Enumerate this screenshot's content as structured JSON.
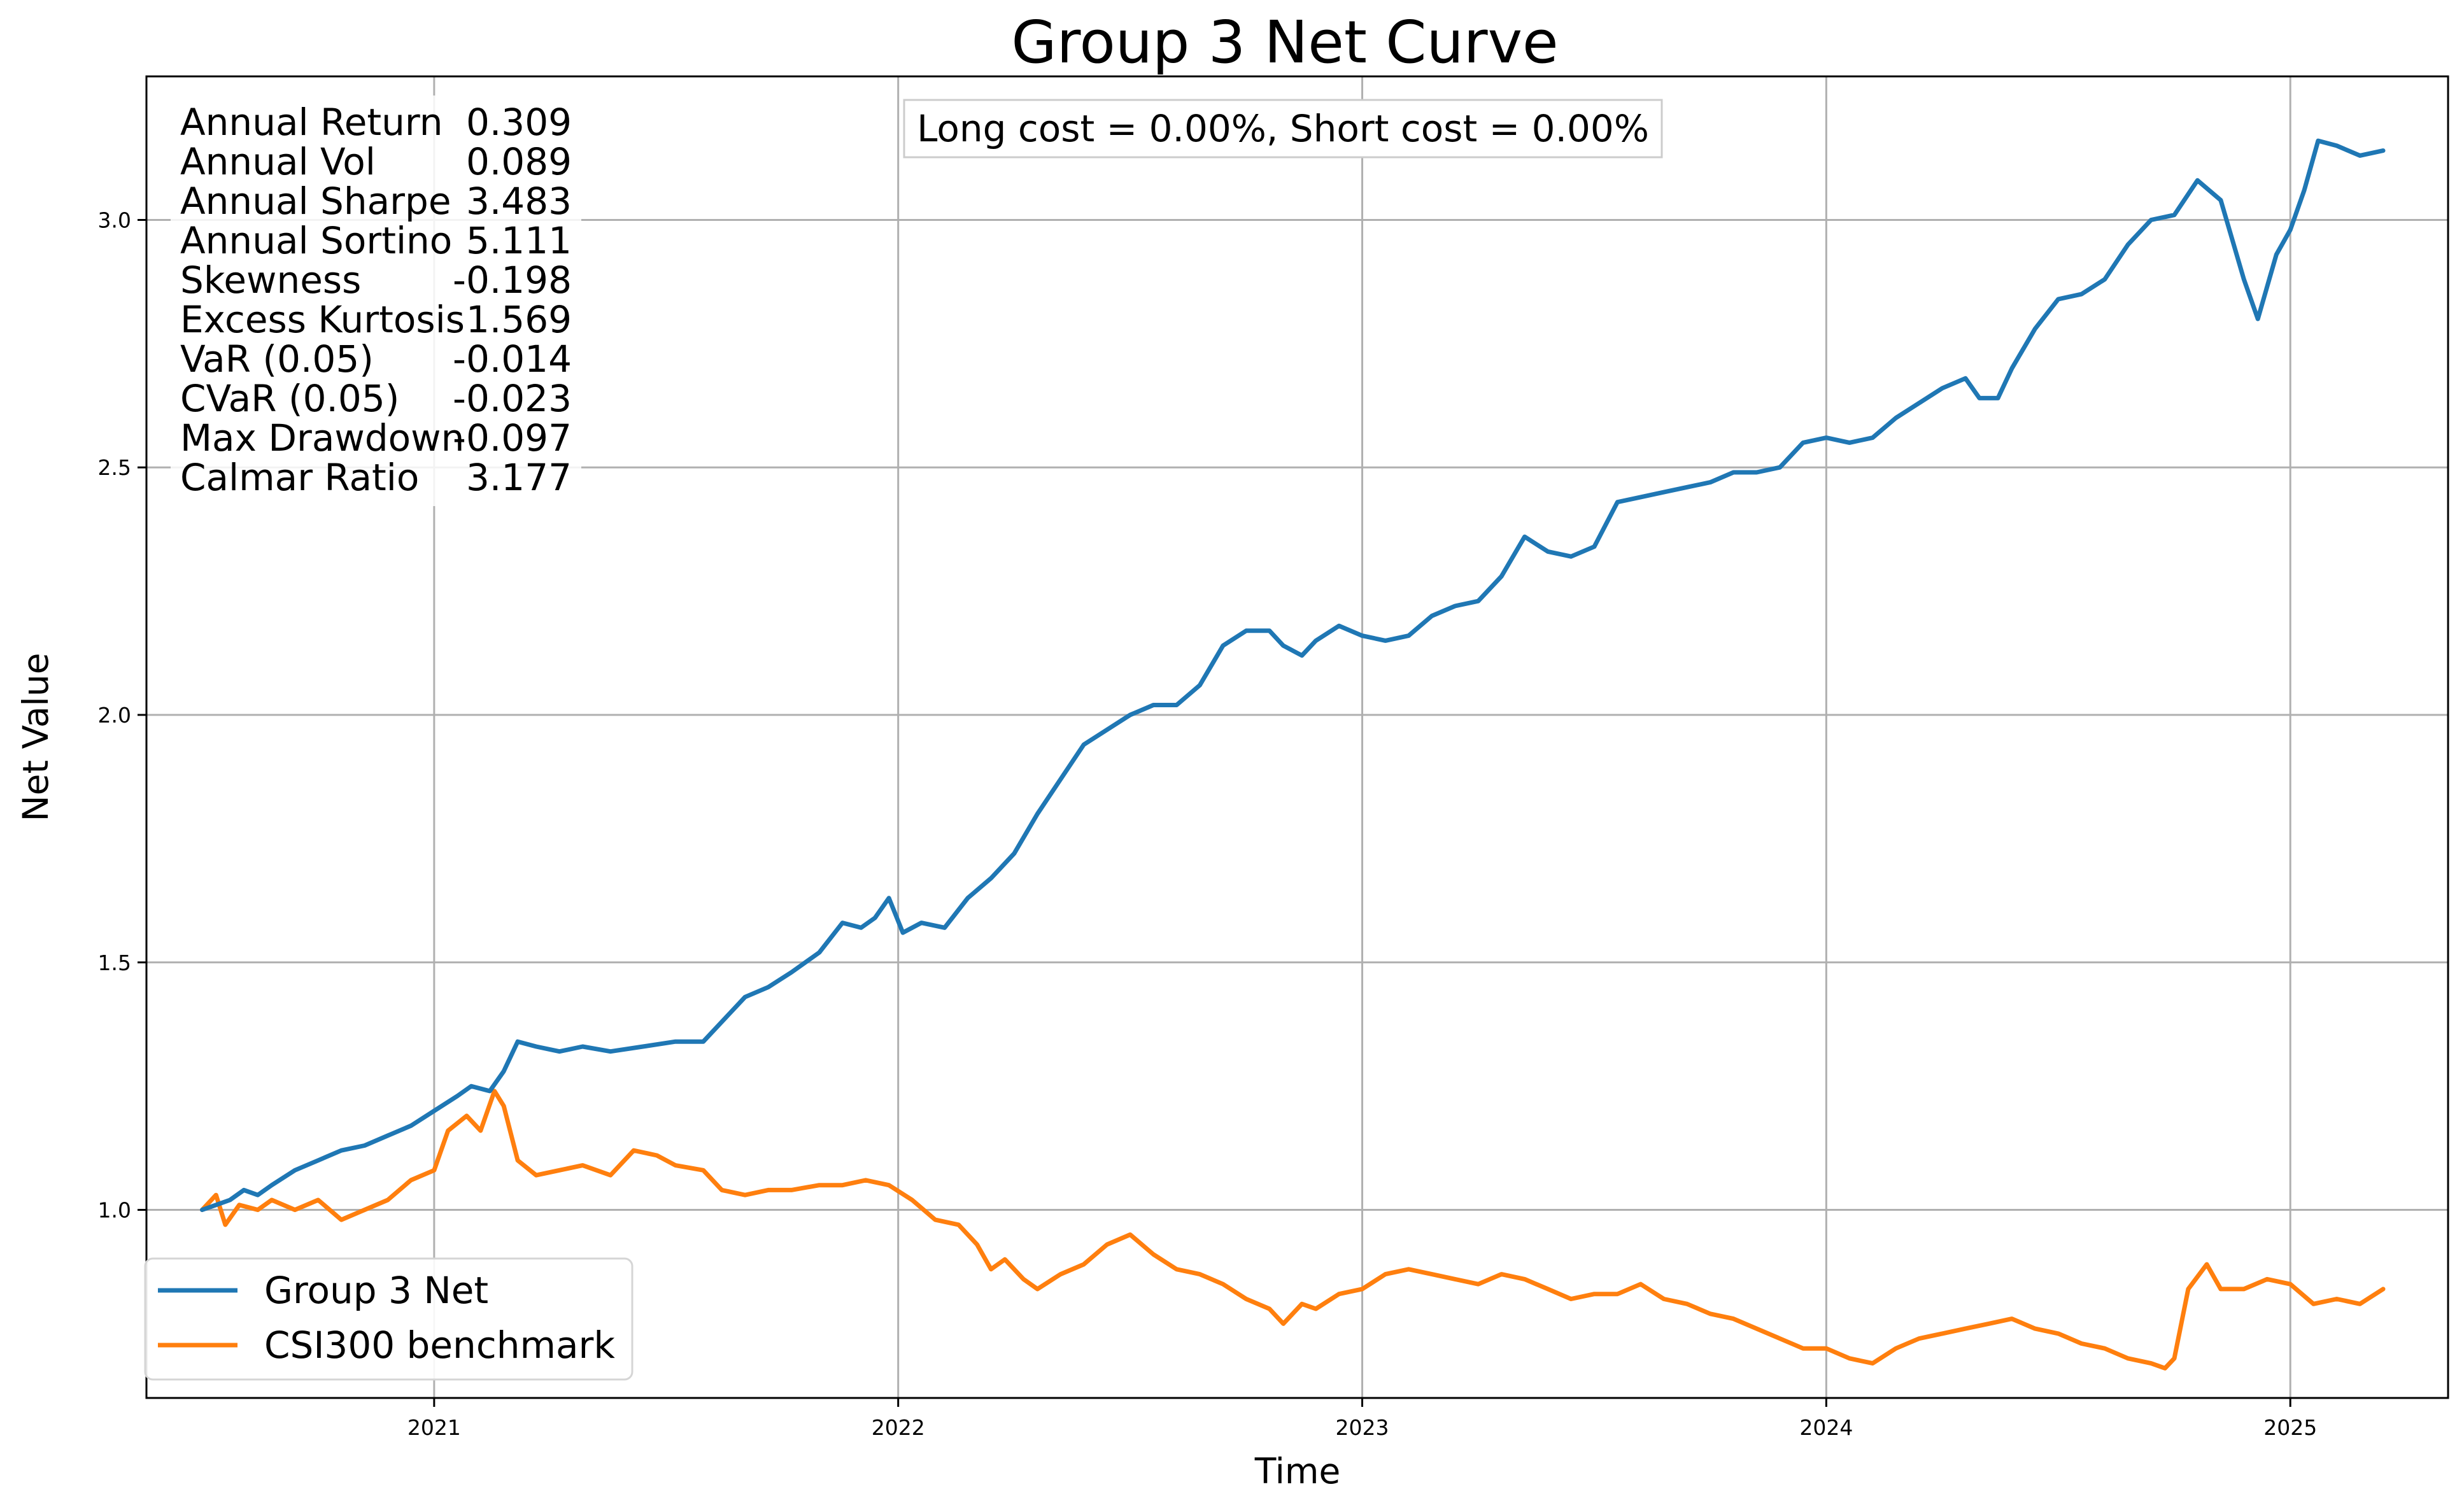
{
  "chart_data": {
    "type": "line",
    "title": "Group 3 Net Curve",
    "xlabel": "Time",
    "ylabel": "Net Value",
    "xlim": [
      2020.38,
      2025.34
    ],
    "ylim": [
      0.62,
      3.29
    ],
    "grid": true,
    "x_ticks": [
      {
        "value": 2021,
        "label": "2021"
      },
      {
        "value": 2022,
        "label": "2022"
      },
      {
        "value": 2023,
        "label": "2023"
      },
      {
        "value": 2024,
        "label": "2024"
      },
      {
        "value": 2025,
        "label": "2025"
      }
    ],
    "y_ticks": [
      {
        "value": 1.0,
        "label": "1.0"
      },
      {
        "value": 1.5,
        "label": "1.5"
      },
      {
        "value": 2.0,
        "label": "2.0"
      },
      {
        "value": 2.5,
        "label": "2.5"
      },
      {
        "value": 3.0,
        "label": "3.0"
      }
    ],
    "annotation": "Long cost = 0.00%, Short cost = 0.00%",
    "stats": [
      {
        "label": "Annual Return",
        "value": "0.309"
      },
      {
        "label": "Annual Vol",
        "value": "0.089"
      },
      {
        "label": "Annual Sharpe",
        "value": "3.483"
      },
      {
        "label": "Annual Sortino",
        "value": "5.111"
      },
      {
        "label": "Skewness",
        "value": "-0.198"
      },
      {
        "label": "Excess Kurtosis",
        "value": "1.569"
      },
      {
        "label": "VaR (0.05)",
        "value": "-0.014"
      },
      {
        "label": "CVaR (0.05)",
        "value": "-0.023"
      },
      {
        "label": "Max Drawdown",
        "value": "-0.097"
      },
      {
        "label": "Calmar Ratio",
        "value": "3.177"
      }
    ],
    "legend_position": "bottom-left",
    "series": [
      {
        "name": "Group 3 Net",
        "color": "#1f77b4",
        "points": [
          [
            2020.5,
            1.0
          ],
          [
            2020.53,
            1.01
          ],
          [
            2020.56,
            1.02
          ],
          [
            2020.59,
            1.04
          ],
          [
            2020.62,
            1.03
          ],
          [
            2020.65,
            1.05
          ],
          [
            2020.7,
            1.08
          ],
          [
            2020.75,
            1.1
          ],
          [
            2020.8,
            1.12
          ],
          [
            2020.85,
            1.13
          ],
          [
            2020.9,
            1.15
          ],
          [
            2020.95,
            1.17
          ],
          [
            2021.0,
            1.2
          ],
          [
            2021.05,
            1.23
          ],
          [
            2021.08,
            1.25
          ],
          [
            2021.12,
            1.24
          ],
          [
            2021.15,
            1.28
          ],
          [
            2021.18,
            1.34
          ],
          [
            2021.22,
            1.33
          ],
          [
            2021.27,
            1.32
          ],
          [
            2021.32,
            1.33
          ],
          [
            2021.38,
            1.32
          ],
          [
            2021.45,
            1.33
          ],
          [
            2021.52,
            1.34
          ],
          [
            2021.58,
            1.34
          ],
          [
            2021.62,
            1.38
          ],
          [
            2021.67,
            1.43
          ],
          [
            2021.72,
            1.45
          ],
          [
            2021.77,
            1.48
          ],
          [
            2021.83,
            1.52
          ],
          [
            2021.88,
            1.58
          ],
          [
            2021.92,
            1.57
          ],
          [
            2021.95,
            1.59
          ],
          [
            2021.98,
            1.63
          ],
          [
            2022.01,
            1.56
          ],
          [
            2022.05,
            1.58
          ],
          [
            2022.1,
            1.57
          ],
          [
            2022.15,
            1.63
          ],
          [
            2022.2,
            1.67
          ],
          [
            2022.25,
            1.72
          ],
          [
            2022.3,
            1.8
          ],
          [
            2022.35,
            1.87
          ],
          [
            2022.4,
            1.94
          ],
          [
            2022.45,
            1.97
          ],
          [
            2022.5,
            2.0
          ],
          [
            2022.55,
            2.02
          ],
          [
            2022.6,
            2.02
          ],
          [
            2022.65,
            2.06
          ],
          [
            2022.7,
            2.14
          ],
          [
            2022.75,
            2.17
          ],
          [
            2022.8,
            2.17
          ],
          [
            2022.83,
            2.14
          ],
          [
            2022.87,
            2.12
          ],
          [
            2022.9,
            2.15
          ],
          [
            2022.95,
            2.18
          ],
          [
            2023.0,
            2.16
          ],
          [
            2023.05,
            2.15
          ],
          [
            2023.1,
            2.16
          ],
          [
            2023.15,
            2.2
          ],
          [
            2023.2,
            2.22
          ],
          [
            2023.25,
            2.23
          ],
          [
            2023.3,
            2.28
          ],
          [
            2023.35,
            2.36
          ],
          [
            2023.4,
            2.33
          ],
          [
            2023.45,
            2.32
          ],
          [
            2023.5,
            2.34
          ],
          [
            2023.55,
            2.43
          ],
          [
            2023.6,
            2.44
          ],
          [
            2023.65,
            2.45
          ],
          [
            2023.7,
            2.46
          ],
          [
            2023.75,
            2.47
          ],
          [
            2023.8,
            2.49
          ],
          [
            2023.85,
            2.49
          ],
          [
            2023.9,
            2.5
          ],
          [
            2023.95,
            2.55
          ],
          [
            2024.0,
            2.56
          ],
          [
            2024.05,
            2.55
          ],
          [
            2024.1,
            2.56
          ],
          [
            2024.15,
            2.6
          ],
          [
            2024.2,
            2.63
          ],
          [
            2024.25,
            2.66
          ],
          [
            2024.3,
            2.68
          ],
          [
            2024.33,
            2.64
          ],
          [
            2024.37,
            2.64
          ],
          [
            2024.4,
            2.7
          ],
          [
            2024.45,
            2.78
          ],
          [
            2024.5,
            2.84
          ],
          [
            2024.55,
            2.85
          ],
          [
            2024.6,
            2.88
          ],
          [
            2024.65,
            2.95
          ],
          [
            2024.7,
            3.0
          ],
          [
            2024.75,
            3.01
          ],
          [
            2024.8,
            3.08
          ],
          [
            2024.85,
            3.04
          ],
          [
            2024.9,
            2.88
          ],
          [
            2024.93,
            2.8
          ],
          [
            2024.97,
            2.93
          ],
          [
            2025.0,
            2.98
          ],
          [
            2025.03,
            3.06
          ],
          [
            2025.06,
            3.16
          ],
          [
            2025.1,
            3.15
          ],
          [
            2025.15,
            3.13
          ],
          [
            2025.2,
            3.14
          ]
        ]
      },
      {
        "name": "CSI300 benchmark",
        "color": "#ff7f0e",
        "points": [
          [
            2020.5,
            1.0
          ],
          [
            2020.53,
            1.03
          ],
          [
            2020.55,
            0.97
          ],
          [
            2020.58,
            1.01
          ],
          [
            2020.62,
            1.0
          ],
          [
            2020.65,
            1.02
          ],
          [
            2020.7,
            1.0
          ],
          [
            2020.75,
            1.02
          ],
          [
            2020.8,
            0.98
          ],
          [
            2020.85,
            1.0
          ],
          [
            2020.9,
            1.02
          ],
          [
            2020.95,
            1.06
          ],
          [
            2021.0,
            1.08
          ],
          [
            2021.03,
            1.16
          ],
          [
            2021.07,
            1.19
          ],
          [
            2021.1,
            1.16
          ],
          [
            2021.13,
            1.24
          ],
          [
            2021.15,
            1.21
          ],
          [
            2021.18,
            1.1
          ],
          [
            2021.22,
            1.07
          ],
          [
            2021.27,
            1.08
          ],
          [
            2021.32,
            1.09
          ],
          [
            2021.38,
            1.07
          ],
          [
            2021.43,
            1.12
          ],
          [
            2021.48,
            1.11
          ],
          [
            2021.52,
            1.09
          ],
          [
            2021.58,
            1.08
          ],
          [
            2021.62,
            1.04
          ],
          [
            2021.67,
            1.03
          ],
          [
            2021.72,
            1.04
          ],
          [
            2021.77,
            1.04
          ],
          [
            2021.83,
            1.05
          ],
          [
            2021.88,
            1.05
          ],
          [
            2021.93,
            1.06
          ],
          [
            2021.98,
            1.05
          ],
          [
            2022.03,
            1.02
          ],
          [
            2022.08,
            0.98
          ],
          [
            2022.13,
            0.97
          ],
          [
            2022.17,
            0.93
          ],
          [
            2022.2,
            0.88
          ],
          [
            2022.23,
            0.9
          ],
          [
            2022.27,
            0.86
          ],
          [
            2022.3,
            0.84
          ],
          [
            2022.35,
            0.87
          ],
          [
            2022.4,
            0.89
          ],
          [
            2022.45,
            0.93
          ],
          [
            2022.5,
            0.95
          ],
          [
            2022.55,
            0.91
          ],
          [
            2022.6,
            0.88
          ],
          [
            2022.65,
            0.87
          ],
          [
            2022.7,
            0.85
          ],
          [
            2022.75,
            0.82
          ],
          [
            2022.8,
            0.8
          ],
          [
            2022.83,
            0.77
          ],
          [
            2022.87,
            0.81
          ],
          [
            2022.9,
            0.8
          ],
          [
            2022.95,
            0.83
          ],
          [
            2023.0,
            0.84
          ],
          [
            2023.05,
            0.87
          ],
          [
            2023.1,
            0.88
          ],
          [
            2023.15,
            0.87
          ],
          [
            2023.2,
            0.86
          ],
          [
            2023.25,
            0.85
          ],
          [
            2023.3,
            0.87
          ],
          [
            2023.35,
            0.86
          ],
          [
            2023.4,
            0.84
          ],
          [
            2023.45,
            0.82
          ],
          [
            2023.5,
            0.83
          ],
          [
            2023.55,
            0.83
          ],
          [
            2023.6,
            0.85
          ],
          [
            2023.65,
            0.82
          ],
          [
            2023.7,
            0.81
          ],
          [
            2023.75,
            0.79
          ],
          [
            2023.8,
            0.78
          ],
          [
            2023.85,
            0.76
          ],
          [
            2023.9,
            0.74
          ],
          [
            2023.95,
            0.72
          ],
          [
            2024.0,
            0.72
          ],
          [
            2024.05,
            0.7
          ],
          [
            2024.1,
            0.69
          ],
          [
            2024.15,
            0.72
          ],
          [
            2024.2,
            0.74
          ],
          [
            2024.25,
            0.75
          ],
          [
            2024.3,
            0.76
          ],
          [
            2024.35,
            0.77
          ],
          [
            2024.4,
            0.78
          ],
          [
            2024.45,
            0.76
          ],
          [
            2024.5,
            0.75
          ],
          [
            2024.55,
            0.73
          ],
          [
            2024.6,
            0.72
          ],
          [
            2024.65,
            0.7
          ],
          [
            2024.7,
            0.69
          ],
          [
            2024.73,
            0.68
          ],
          [
            2024.75,
            0.7
          ],
          [
            2024.78,
            0.84
          ],
          [
            2024.82,
            0.89
          ],
          [
            2024.85,
            0.84
          ],
          [
            2024.9,
            0.84
          ],
          [
            2024.95,
            0.86
          ],
          [
            2025.0,
            0.85
          ],
          [
            2025.05,
            0.81
          ],
          [
            2025.1,
            0.82
          ],
          [
            2025.15,
            0.81
          ],
          [
            2025.2,
            0.84
          ]
        ]
      }
    ]
  }
}
